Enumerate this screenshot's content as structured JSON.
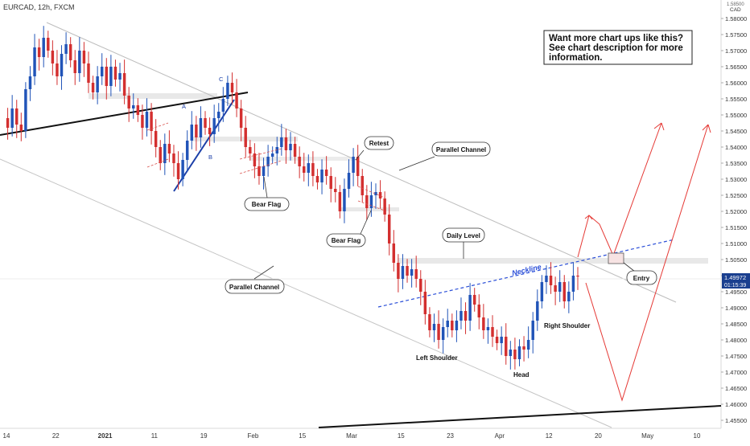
{
  "header": {
    "symbol_label": "EURCAD, 12h, FXCM"
  },
  "info_box": {
    "lines": [
      "Want more chart ups like this?",
      "See chart description for more",
      "information."
    ]
  },
  "annotations": {
    "retest": "Retest",
    "parallel_channel_top": "Parallel Channel",
    "parallel_channel_bottom": "Parallel Channel",
    "bear_flag_1": "Bear Flag",
    "bear_flag_2": "Bear Flag",
    "daily_level": "Daily Level",
    "entry": "Entry",
    "neckline": "Neckline",
    "left_shoulder": "Left Shoulder",
    "head": "Head",
    "right_shoulder": "Right Shoulder",
    "point_a": "A",
    "point_b": "B",
    "point_c": "C"
  },
  "price_axis": {
    "unit_partial": "1.58500",
    "unit": "CAD",
    "last_price": "1.49972",
    "countdown": "01:15:39"
  },
  "colors": {
    "bull": "#2154b8",
    "bear": "#d32f2f",
    "projection": "#e53935",
    "neckline": "#2b4fd8",
    "zone": "#e8e8e8",
    "channel": "#bdbdbd",
    "price_tag": "#1a3f8f"
  },
  "chart_data": {
    "type": "candlestick",
    "title": "EURCAD, 12h, FXCM",
    "xlabel": "",
    "ylabel": "",
    "ylim": [
      1.45,
      1.585
    ],
    "y_ticks": [
      "1.58000",
      "1.57500",
      "1.57000",
      "1.56500",
      "1.56000",
      "1.55500",
      "1.55000",
      "1.54500",
      "1.54000",
      "1.53500",
      "1.53000",
      "1.52500",
      "1.52000",
      "1.51500",
      "1.51000",
      "1.50500",
      "1.50000",
      "1.49500",
      "1.49000",
      "1.48500",
      "1.48000",
      "1.47500",
      "1.47000",
      "1.46500",
      "1.46000",
      "1.45500"
    ],
    "x_ticks": [
      "14",
      "22",
      "2021",
      "11",
      "19",
      "Feb",
      "15",
      "Mar",
      "15",
      "23",
      "Apr",
      "12",
      "20",
      "May",
      "10"
    ],
    "close_series": [
      1.549,
      1.546,
      1.552,
      1.547,
      1.545,
      1.558,
      1.562,
      1.571,
      1.568,
      1.574,
      1.57,
      1.566,
      1.562,
      1.569,
      1.572,
      1.567,
      1.563,
      1.57,
      1.566,
      1.56,
      1.557,
      1.562,
      1.565,
      1.559,
      1.565,
      1.561,
      1.563,
      1.556,
      1.552,
      1.553,
      1.55,
      1.546,
      1.551,
      1.545,
      1.54,
      1.535,
      1.541,
      1.538,
      1.535,
      1.53,
      1.536,
      1.542,
      1.547,
      1.543,
      1.549,
      1.546,
      1.544,
      1.549,
      1.551,
      1.555,
      1.56,
      1.557,
      1.552,
      1.546,
      1.54,
      1.538,
      1.534,
      1.531,
      1.534,
      1.537,
      1.538,
      1.54,
      1.543,
      1.539,
      1.541,
      1.537,
      1.534,
      1.532,
      1.535,
      1.531,
      1.529,
      1.533,
      1.531,
      1.527,
      1.526,
      1.52,
      1.527,
      1.532,
      1.537,
      1.531,
      1.525,
      1.521,
      1.525,
      1.526,
      1.524,
      1.519,
      1.51,
      1.504,
      1.499,
      1.503,
      1.5,
      1.502,
      1.499,
      1.495,
      1.488,
      1.483,
      1.485,
      1.48,
      1.484,
      1.486,
      1.483,
      1.486,
      1.489,
      1.486,
      1.494,
      1.491,
      1.487,
      1.483,
      1.484,
      1.481,
      1.479,
      1.481,
      1.475,
      1.477,
      1.474,
      1.478,
      1.477,
      1.48,
      1.486,
      1.492,
      1.498,
      1.5,
      1.497,
      1.495,
      1.498,
      1.492,
      1.495,
      1.5,
      1.49972
    ],
    "projection_peak": 1.519,
    "projection_target": 1.548,
    "projection_low": 1.461,
    "daily_level": 1.5055,
    "entry_price": 1.5065
  }
}
